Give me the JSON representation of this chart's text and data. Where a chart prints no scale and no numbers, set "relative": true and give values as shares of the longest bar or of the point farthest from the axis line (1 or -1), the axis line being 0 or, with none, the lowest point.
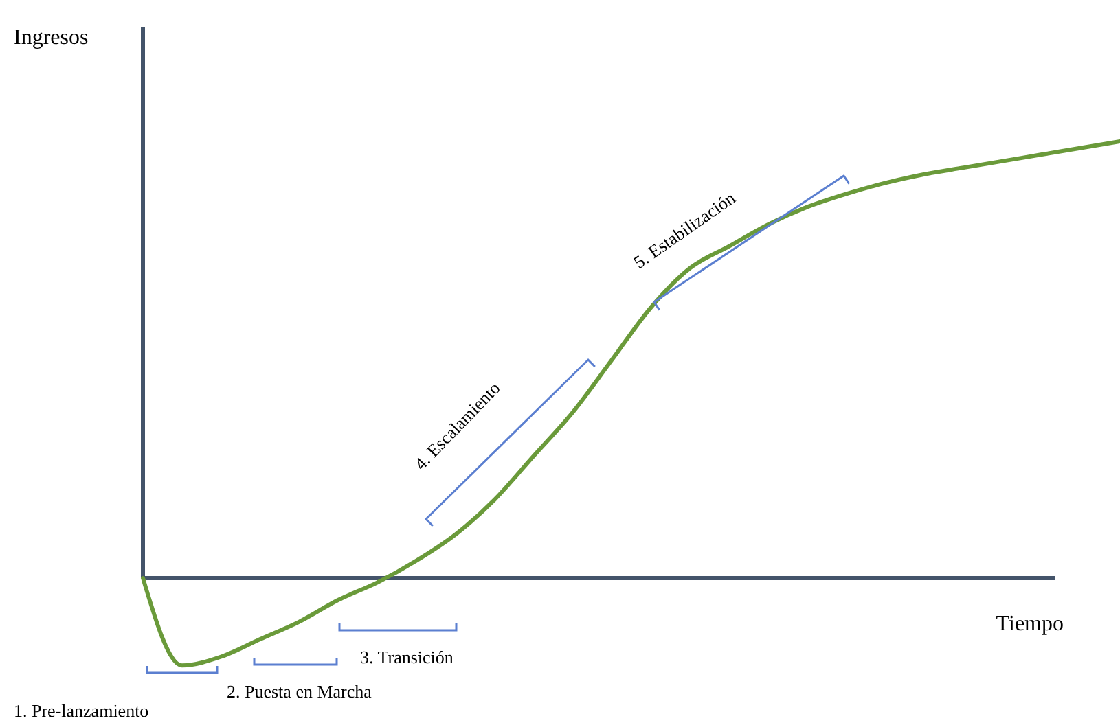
{
  "chart_data": {
    "type": "line",
    "relative": true,
    "ylabel": "Ingresos",
    "xlabel": "Tiempo",
    "categories": [
      null,
      null,
      null,
      null,
      null,
      null,
      null,
      null,
      null,
      null,
      null,
      null,
      null,
      null,
      null,
      null,
      null,
      null,
      null,
      null,
      null,
      null,
      null,
      null,
      null,
      null
    ],
    "series": [
      {
        "color": "#6a9a3a",
        "values": [
          0,
          -0.2,
          -0.18,
          -0.14,
          -0.1,
          -0.05,
          -0.01,
          0.04,
          0.1,
          0.18,
          0.28,
          0.38,
          0.5,
          0.62,
          0.71,
          0.76,
          0.81,
          0.85,
          0.88,
          0.905,
          0.925,
          0.94,
          0.955,
          0.97,
          0.985,
          1
        ]
      }
    ],
    "line_style": "solid",
    "annotations": [
      "1. Pre-lanzamiento",
      "2. Puesta en Marcha",
      "3. Transición",
      "4. Escalamiento",
      "5. Estabilización"
    ]
  }
}
